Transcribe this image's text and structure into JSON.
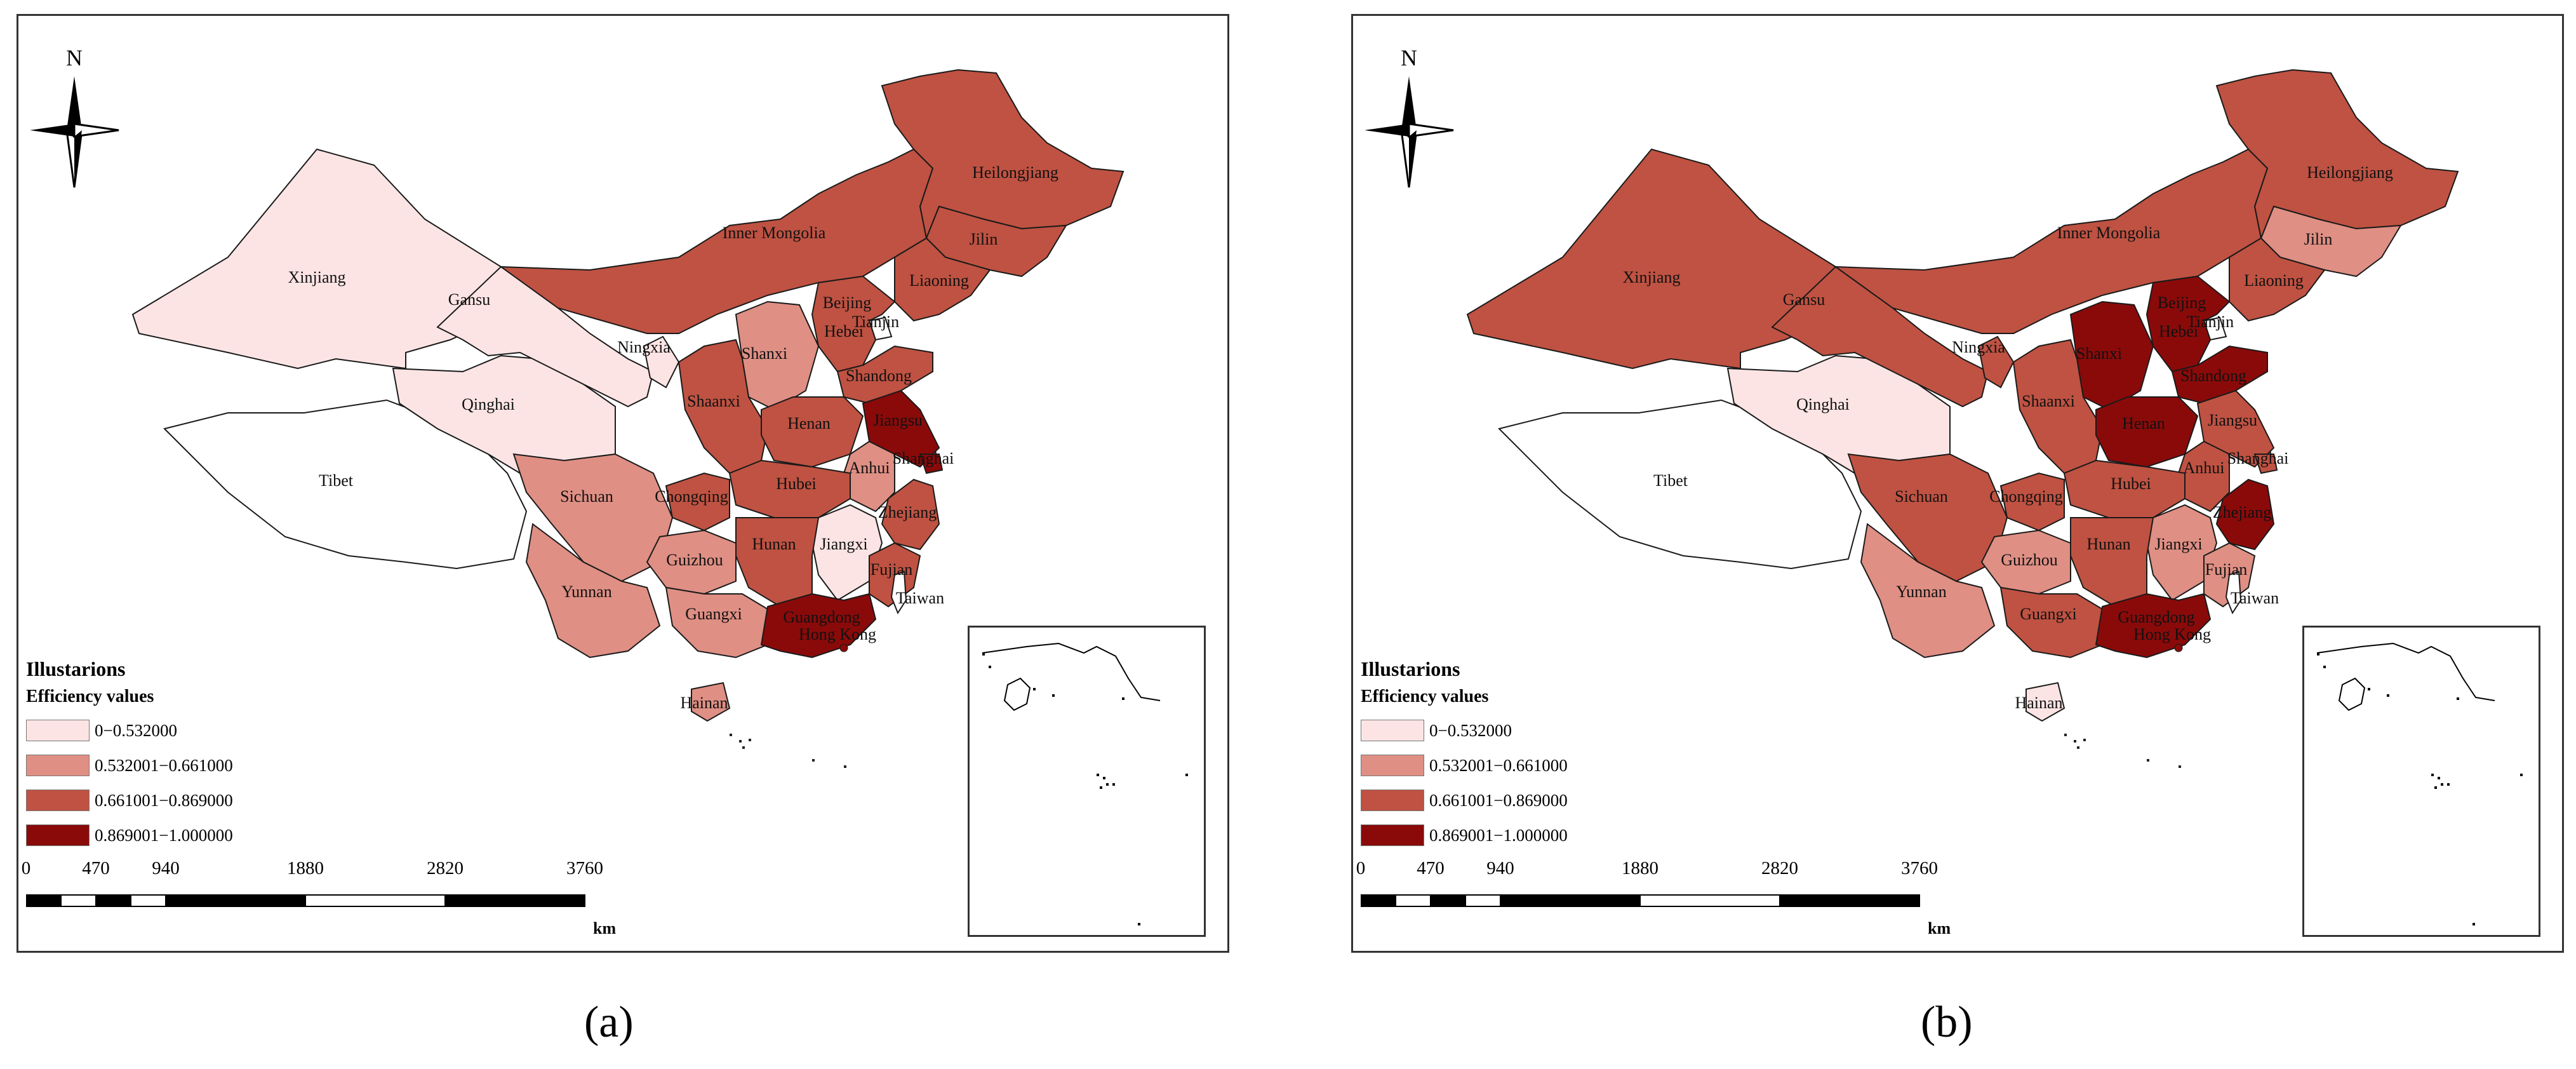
{
  "panels": [
    {
      "id": "a",
      "caption": "(a)",
      "legend_title": "Illustarions",
      "legend_subtitle": "Efficiency values",
      "classes": {
        "Xinjiang": 0,
        "Tibet": -1,
        "Qinghai": 0,
        "Gansu": 0,
        "Ningxia": 0,
        "Inner Mongolia": 2,
        "Heilongjiang": 2,
        "Jilin": 2,
        "Liaoning": 2,
        "Beijing": 3,
        "Tianjin": -1,
        "Hebei": 2,
        "Shanxi": 1,
        "Shaanxi": 2,
        "Shandong": 2,
        "Henan": 2,
        "Jiangsu": 3,
        "Shanghai": 3,
        "Anhui": 1,
        "Hubei": 2,
        "Chongqing": 2,
        "Sichuan": 1,
        "Zhejiang": 2,
        "Jiangxi": 0,
        "Hunan": 2,
        "Guizhou": 1,
        "Yunnan": 1,
        "Guangxi": 1,
        "Fujian": 2,
        "Guangdong": 3,
        "Hainan": 1,
        "Taiwan": -1
      }
    },
    {
      "id": "b",
      "caption": "(b)",
      "legend_title": "Illustarions",
      "legend_subtitle": "Efficiency values",
      "classes": {
        "Xinjiang": 2,
        "Tibet": -1,
        "Qinghai": 0,
        "Gansu": 2,
        "Ningxia": 2,
        "Inner Mongolia": 2,
        "Heilongjiang": 2,
        "Jilin": 1,
        "Liaoning": 2,
        "Beijing": 3,
        "Tianjin": -1,
        "Hebei": 3,
        "Shanxi": 3,
        "Shaanxi": 2,
        "Shandong": 3,
        "Henan": 3,
        "Jiangsu": 2,
        "Shanghai": 2,
        "Anhui": 2,
        "Hubei": 2,
        "Chongqing": 2,
        "Sichuan": 2,
        "Zhejiang": 3,
        "Jiangxi": 1,
        "Hunan": 2,
        "Guizhou": 1,
        "Yunnan": 1,
        "Guangxi": 2,
        "Fujian": 1,
        "Guangdong": 3,
        "Hainan": 0,
        "Taiwan": -1
      }
    }
  ],
  "legend_classes": [
    {
      "label": "0−0.532000",
      "color": "#fce4e4"
    },
    {
      "label": "0.532001−0.661000",
      "color": "#df8f84"
    },
    {
      "label": "0.661001−0.869000",
      "color": "#bf5242"
    },
    {
      "label": "0.869001−1.000000",
      "color": "#8a0a0a"
    }
  ],
  "no_data_color": "#ffffff",
  "province_names": {
    "Xinjiang": "Xinjiang",
    "Tibet": "Tibet",
    "Qinghai": "Qinghai",
    "Gansu": "Gansu",
    "Ningxia": "Ningxia",
    "Inner Mongolia": "Inner Mongolia",
    "Heilongjiang": "Heilongjiang",
    "Jilin": "Jilin",
    "Liaoning": "Liaoning",
    "Beijing": "Beijing",
    "Tianjin": "Tianjin",
    "Hebei": "Hebei",
    "Shanxi": "Shanxi",
    "Shaanxi": "Shaanxi",
    "Shandong": "Shandong",
    "Henan": "Henan",
    "Jiangsu": "Jiangsu",
    "Shanghai": "Shanghai",
    "Anhui": "Anhui",
    "Hubei": "Hubei",
    "Chongqing": "Chongqing",
    "Sichuan": "Sichuan",
    "Zhejiang": "Zhejiang",
    "Jiangxi": "Jiangxi",
    "Hunan": "Hunan",
    "Guizhou": "Guizhou",
    "Yunnan": "Yunnan",
    "Guangxi": "Guangxi",
    "Fujian": "Fujian",
    "Guangdong": "Guangdong",
    "Hainan": "Hainan",
    "Taiwan": "Taiwan",
    "Hong Kong": "Hong Kong"
  },
  "scale_ticks": [
    "0",
    "470",
    "940",
    "1880",
    "2820",
    "3760"
  ],
  "scale_unit": "km",
  "north_label": "N"
}
